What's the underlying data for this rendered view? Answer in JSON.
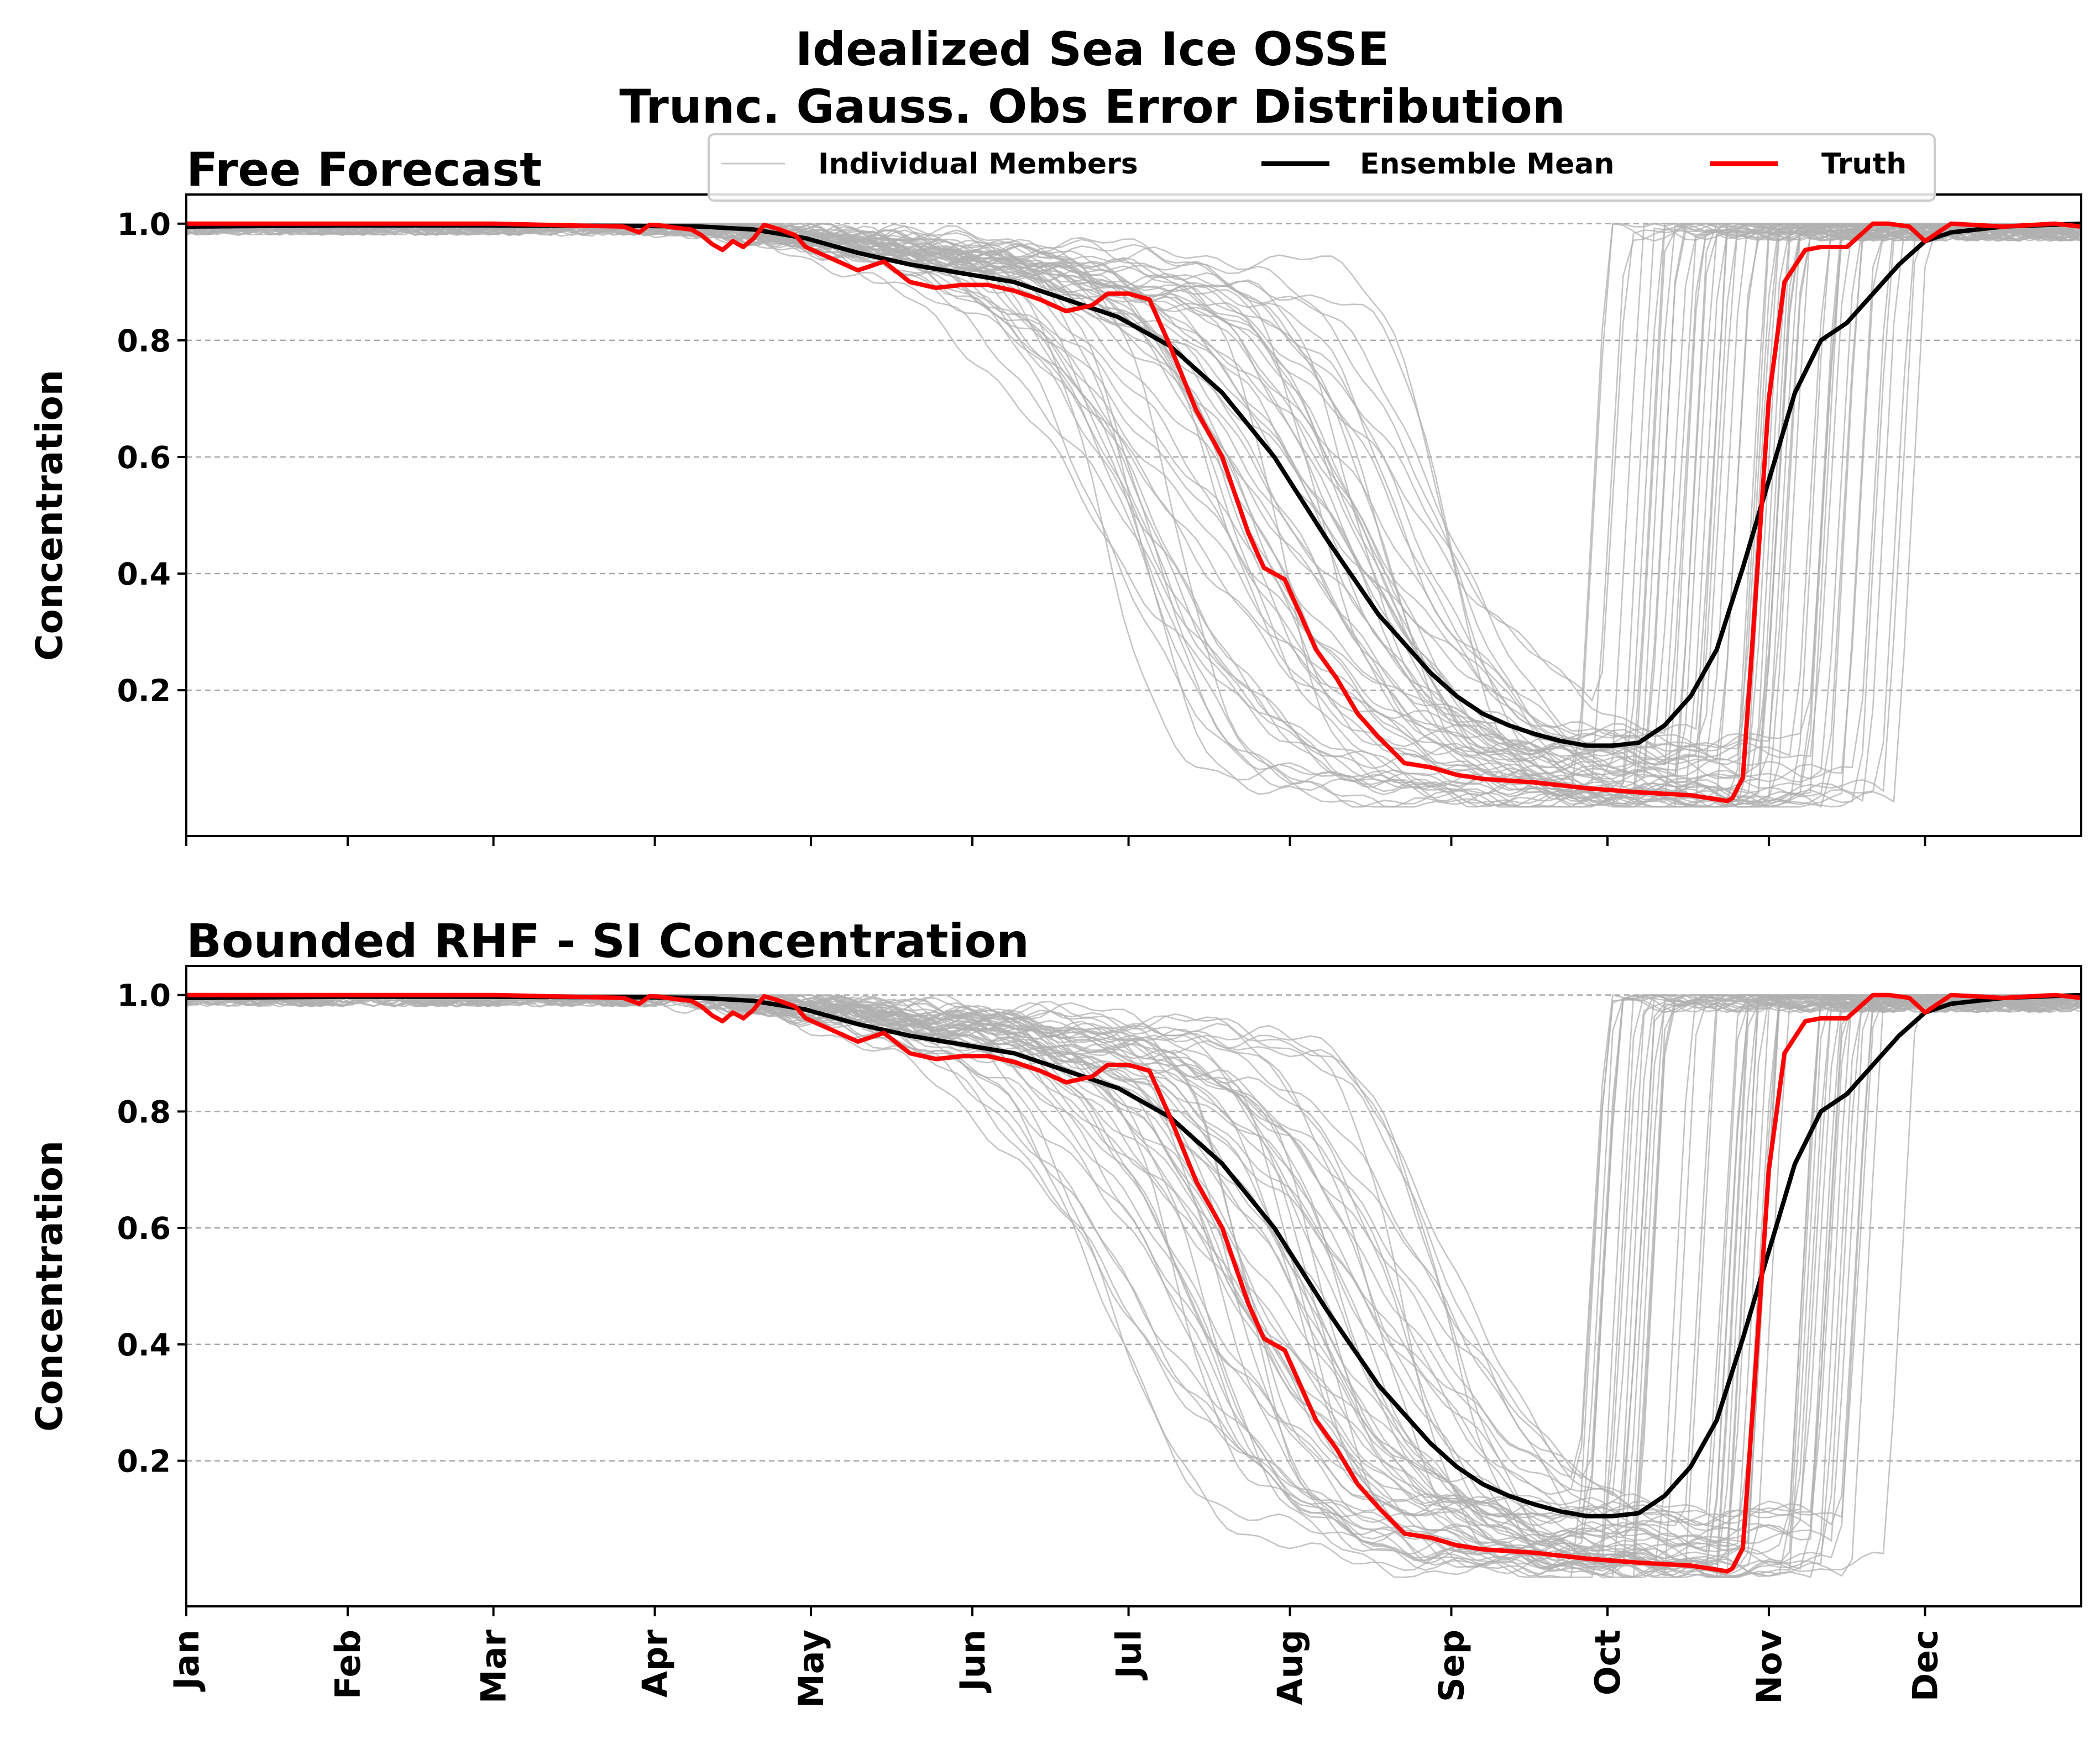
{
  "title_line1": "Idealized Sea Ice OSSE",
  "title_line2": "Trunc. Gauss. Obs Error Distribution",
  "legend": {
    "members_label": "Individual Members",
    "mean_label": "Ensemble Mean",
    "truth_label": "Truth"
  },
  "colors": {
    "members": "#b0b0b0",
    "mean": "#000000",
    "truth": "#ff0000",
    "grid": "#a8a8a8"
  },
  "chart_data": [
    {
      "type": "line",
      "title": "Free Forecast",
      "ylabel": "Concentration",
      "xlabel": "",
      "x_unit": "day of year",
      "xlim": [
        1,
        365
      ],
      "ylim": [
        -0.05,
        1.05
      ],
      "yticks": [
        "0.2",
        "0.4",
        "0.6",
        "0.8",
        "1.0"
      ],
      "grid": "horizontal dashed",
      "legend_position": "top-right",
      "xtick_labels_visible": false,
      "series": [
        {
          "name": "Ensemble Mean",
          "x": [
            1,
            30,
            60,
            90,
            100,
            110,
            120,
            130,
            140,
            150,
            160,
            170,
            180,
            190,
            200,
            210,
            220,
            230,
            240,
            245,
            250,
            255,
            260,
            265,
            270,
            275,
            280,
            285,
            290,
            295,
            300,
            305,
            310,
            315,
            320,
            330,
            335,
            340,
            350,
            365
          ],
          "y": [
            0.995,
            0.997,
            0.997,
            0.996,
            0.995,
            0.99,
            0.975,
            0.95,
            0.93,
            0.915,
            0.9,
            0.87,
            0.84,
            0.79,
            0.71,
            0.6,
            0.46,
            0.33,
            0.23,
            0.19,
            0.16,
            0.14,
            0.125,
            0.113,
            0.105,
            0.105,
            0.11,
            0.14,
            0.19,
            0.27,
            0.41,
            0.56,
            0.71,
            0.8,
            0.83,
            0.93,
            0.97,
            0.985,
            0.995,
            1.0
          ]
        },
        {
          "name": "Truth",
          "x": [
            1,
            60,
            85,
            88,
            90,
            92,
            95,
            98,
            100,
            102,
            104,
            106,
            108,
            110,
            112,
            115,
            118,
            120,
            125,
            130,
            135,
            140,
            145,
            150,
            155,
            160,
            165,
            170,
            175,
            178,
            182,
            186,
            190,
            195,
            200,
            205,
            208,
            212,
            215,
            218,
            222,
            226,
            230,
            235,
            240,
            245,
            250,
            260,
            270,
            280,
            290,
            295,
            297,
            298,
            300,
            302,
            305,
            308,
            312,
            315,
            320,
            325,
            328,
            332,
            335,
            340,
            350,
            360,
            365
          ],
          "y": [
            1.0,
            1.0,
            0.995,
            0.985,
            0.998,
            0.997,
            0.993,
            0.99,
            0.98,
            0.965,
            0.955,
            0.97,
            0.96,
            0.975,
            0.998,
            0.99,
            0.98,
            0.96,
            0.94,
            0.92,
            0.935,
            0.9,
            0.89,
            0.895,
            0.895,
            0.885,
            0.87,
            0.85,
            0.86,
            0.88,
            0.88,
            0.87,
            0.79,
            0.68,
            0.6,
            0.47,
            0.41,
            0.39,
            0.33,
            0.27,
            0.22,
            0.16,
            0.12,
            0.075,
            0.068,
            0.055,
            0.048,
            0.042,
            0.032,
            0.025,
            0.02,
            0.013,
            0.01,
            0.015,
            0.05,
            0.3,
            0.7,
            0.9,
            0.955,
            0.96,
            0.96,
            1.0,
            1.0,
            0.995,
            0.97,
            1.0,
            0.995,
            1.0,
            0.995
          ]
        }
      ]
    },
    {
      "type": "line",
      "title": "Bounded RHF - SI Concentration",
      "ylabel": "Concentration",
      "xlabel": "",
      "x_unit": "day of year",
      "xlim": [
        1,
        365
      ],
      "ylim": [
        -0.05,
        1.05
      ],
      "yticks": [
        "0.2",
        "0.4",
        "0.6",
        "0.8",
        "1.0"
      ],
      "grid": "horizontal dashed",
      "xtick_labels_visible": true,
      "xticks": [
        {
          "label": "Jan",
          "day": 1
        },
        {
          "label": "Feb",
          "day": 32
        },
        {
          "label": "Mar",
          "day": 60
        },
        {
          "label": "Apr",
          "day": 91
        },
        {
          "label": "May",
          "day": 121
        },
        {
          "label": "Jun",
          "day": 152
        },
        {
          "label": "Jul",
          "day": 182
        },
        {
          "label": "Aug",
          "day": 213
        },
        {
          "label": "Sep",
          "day": 244
        },
        {
          "label": "Oct",
          "day": 274
        },
        {
          "label": "Nov",
          "day": 305
        },
        {
          "label": "Dec",
          "day": 335
        }
      ],
      "series": [
        {
          "name": "Ensemble Mean",
          "x": [
            1,
            30,
            60,
            90,
            100,
            110,
            120,
            130,
            140,
            150,
            160,
            170,
            180,
            190,
            200,
            210,
            220,
            230,
            240,
            245,
            250,
            255,
            260,
            265,
            270,
            275,
            280,
            285,
            290,
            295,
            300,
            305,
            310,
            315,
            320,
            330,
            335,
            340,
            350,
            365
          ],
          "y": [
            0.995,
            0.997,
            0.997,
            0.996,
            0.995,
            0.99,
            0.975,
            0.95,
            0.93,
            0.915,
            0.9,
            0.87,
            0.84,
            0.79,
            0.71,
            0.6,
            0.46,
            0.33,
            0.23,
            0.19,
            0.16,
            0.14,
            0.125,
            0.113,
            0.105,
            0.105,
            0.11,
            0.14,
            0.19,
            0.27,
            0.41,
            0.56,
            0.71,
            0.8,
            0.83,
            0.93,
            0.97,
            0.985,
            0.995,
            1.0
          ]
        },
        {
          "name": "Truth",
          "x": [
            1,
            60,
            85,
            88,
            90,
            92,
            95,
            98,
            100,
            102,
            104,
            106,
            108,
            110,
            112,
            115,
            118,
            120,
            125,
            130,
            135,
            140,
            145,
            150,
            155,
            160,
            165,
            170,
            175,
            178,
            182,
            186,
            190,
            195,
            200,
            205,
            208,
            212,
            215,
            218,
            222,
            226,
            230,
            235,
            240,
            245,
            250,
            260,
            270,
            280,
            290,
            295,
            297,
            298,
            300,
            302,
            305,
            308,
            312,
            315,
            320,
            325,
            328,
            332,
            335,
            340,
            350,
            360,
            365
          ],
          "y": [
            1.0,
            1.0,
            0.995,
            0.985,
            0.998,
            0.997,
            0.993,
            0.99,
            0.98,
            0.965,
            0.955,
            0.97,
            0.96,
            0.975,
            0.998,
            0.99,
            0.98,
            0.96,
            0.94,
            0.92,
            0.935,
            0.9,
            0.89,
            0.895,
            0.895,
            0.885,
            0.87,
            0.85,
            0.86,
            0.88,
            0.88,
            0.87,
            0.79,
            0.68,
            0.6,
            0.47,
            0.41,
            0.39,
            0.33,
            0.27,
            0.22,
            0.16,
            0.12,
            0.075,
            0.068,
            0.055,
            0.048,
            0.042,
            0.032,
            0.025,
            0.02,
            0.013,
            0.01,
            0.015,
            0.05,
            0.3,
            0.7,
            0.9,
            0.955,
            0.96,
            0.96,
            1.0,
            1.0,
            0.995,
            0.97,
            1.0,
            0.995,
            1.0,
            0.995
          ]
        }
      ]
    }
  ]
}
